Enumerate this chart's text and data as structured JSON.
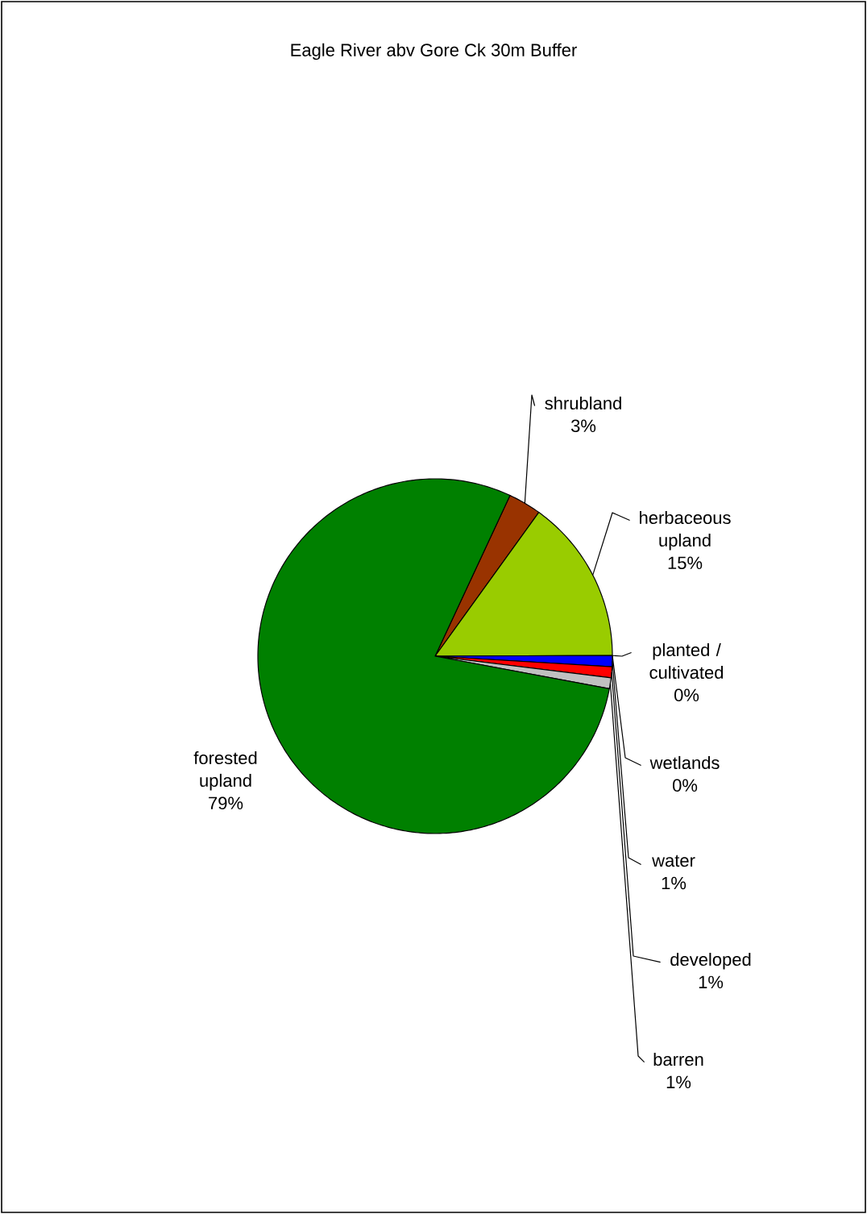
{
  "chart_data": {
    "type": "pie",
    "title": "Eagle River abv Gore Ck 30m Buffer",
    "categories": [
      "shrubland",
      "herbaceous upland",
      "planted / cultivated",
      "wetlands",
      "water",
      "developed",
      "barren",
      "forested upland"
    ],
    "values": [
      3,
      15,
      0,
      0,
      1,
      1,
      1,
      79
    ],
    "value_labels": [
      "3%",
      "15%",
      "0%",
      "0%",
      "1%",
      "1%",
      "1%",
      "79%"
    ],
    "colors": [
      "#993300",
      "#99cc00",
      "#ffff00",
      "#00ffff",
      "#0000ff",
      "#ff0000",
      "#c0c0c0",
      "#008000"
    ]
  }
}
